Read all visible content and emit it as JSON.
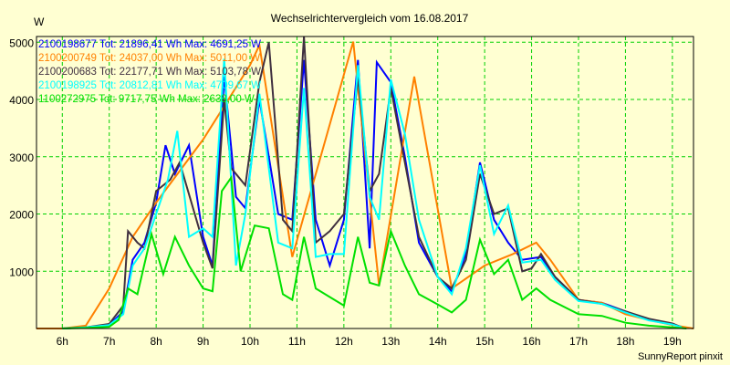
{
  "chart_data": {
    "type": "line",
    "title": "Wechselrichtervergleich vom 16.08.2017",
    "ylabel": "W",
    "xlabel": "",
    "footer": "SunnyReport pinxit",
    "xlim": [
      5.45,
      19.45
    ],
    "ylim": [
      0,
      5100
    ],
    "grid": true,
    "legend_placement": "top-left",
    "x_ticks": [
      6,
      7,
      8,
      9,
      10,
      11,
      12,
      13,
      14,
      15,
      16,
      17,
      18,
      19
    ],
    "x_tick_labels": [
      "6h",
      "7h",
      "8h",
      "9h",
      "10h",
      "11h",
      "12h",
      "13h",
      "14h",
      "15h",
      "16h",
      "17h",
      "18h",
      "19h"
    ],
    "y_ticks": [
      1000,
      2000,
      3000,
      4000,
      5000
    ],
    "y_tick_labels": [
      "1000",
      "2000",
      "3000",
      "4000",
      "5000"
    ],
    "series": [
      {
        "name": "2100198677",
        "legend": "2100198677 Tot: 21896,41 Wh Max: 4691,25 W",
        "color": "#0000ff",
        "x": [
          6.0,
          6.5,
          7.0,
          7.3,
          7.5,
          7.75,
          8.0,
          8.2,
          8.4,
          8.7,
          9.0,
          9.2,
          9.45,
          9.7,
          9.9,
          10.2,
          10.6,
          10.9,
          11.15,
          11.4,
          11.7,
          12.0,
          12.3,
          12.55,
          12.7,
          13.0,
          13.3,
          13.6,
          14.0,
          14.3,
          14.6,
          14.9,
          15.2,
          15.5,
          15.8,
          16.2,
          16.5,
          17.0,
          17.5,
          18.0,
          18.5,
          19.0,
          19.2
        ],
        "y": [
          0,
          20,
          60,
          300,
          1200,
          1500,
          2200,
          3200,
          2700,
          3200,
          1600,
          1100,
          4400,
          2300,
          2100,
          4000,
          2000,
          1900,
          4690,
          1900,
          1100,
          1900,
          4690,
          1400,
          4650,
          4300,
          3000,
          1500,
          900,
          650,
          1300,
          2900,
          1900,
          1500,
          1200,
          1250,
          900,
          500,
          450,
          300,
          150,
          80,
          20
        ]
      },
      {
        "name": "2100200749",
        "legend": "2100200749 Tot: 24037,00 Wh Max: 5011,00 W",
        "color": "#ff8000",
        "x": [
          5.45,
          6.0,
          6.5,
          7.0,
          7.5,
          8.0,
          9.0,
          10.0,
          10.2,
          10.9,
          12.2,
          12.75,
          13.5,
          14.3,
          15.0,
          15.6,
          16.1,
          16.4,
          17.0,
          17.5,
          18.0,
          18.5,
          19.0,
          19.45
        ],
        "y": [
          0,
          0,
          50,
          700,
          1600,
          2200,
          3300,
          4600,
          4950,
          1250,
          5011,
          750,
          4400,
          700,
          1100,
          1300,
          1500,
          1200,
          500,
          450,
          250,
          150,
          60,
          0
        ]
      },
      {
        "name": "2100200683",
        "legend": "2100200683 Tot: 22177,71 Wh Max: 5103,78 W",
        "color": "#403040",
        "x": [
          6.0,
          6.5,
          7.0,
          7.3,
          7.4,
          7.6,
          7.75,
          8.0,
          8.3,
          8.5,
          9.0,
          9.2,
          9.45,
          9.6,
          9.9,
          10.2,
          10.4,
          10.7,
          10.9,
          11.15,
          11.4,
          11.7,
          12.0,
          12.3,
          12.55,
          12.75,
          13.0,
          13.3,
          13.6,
          14.0,
          14.3,
          14.6,
          14.9,
          15.2,
          15.5,
          15.8,
          16.0,
          16.2,
          16.5,
          17.0,
          17.5,
          18.0,
          18.5,
          19.0,
          19.2
        ],
        "y": [
          0,
          20,
          80,
          400,
          1700,
          1500,
          1400,
          2400,
          2600,
          2900,
          1500,
          1050,
          4000,
          2800,
          2500,
          4300,
          5000,
          1900,
          1700,
          5103,
          1500,
          1700,
          2000,
          4400,
          2400,
          2700,
          4200,
          2900,
          1600,
          900,
          700,
          1200,
          2700,
          2000,
          2100,
          1000,
          1050,
          1300,
          900,
          500,
          430,
          300,
          170,
          90,
          20
        ]
      },
      {
        "name": "2100198925",
        "legend": "2100198925 Tot: 20812,81 Wh Max: 4709,67 W",
        "color": "#00ffff",
        "x": [
          6.0,
          6.5,
          7.0,
          7.3,
          7.5,
          7.75,
          8.0,
          8.25,
          8.45,
          8.7,
          9.0,
          9.2,
          9.45,
          9.7,
          9.9,
          10.2,
          10.6,
          10.9,
          11.15,
          11.4,
          11.7,
          12.0,
          12.3,
          12.55,
          12.75,
          13.0,
          13.3,
          13.6,
          14.0,
          14.3,
          14.6,
          14.9,
          15.2,
          15.5,
          15.8,
          16.2,
          16.5,
          17.0,
          17.5,
          18.0,
          18.5,
          19.0,
          19.2
        ],
        "y": [
          0,
          20,
          60,
          250,
          1100,
          1400,
          2000,
          2600,
          3450,
          1600,
          1750,
          1600,
          4709,
          1100,
          2000,
          4100,
          1500,
          1400,
          4200,
          1250,
          1300,
          1300,
          4600,
          2300,
          1900,
          4350,
          3400,
          1900,
          900,
          600,
          1400,
          2850,
          1650,
          2150,
          1150,
          1200,
          850,
          480,
          430,
          280,
          140,
          70,
          20
        ]
      },
      {
        "name": "1100272975",
        "legend": "1100272975 Tot: 9717,75 Wh Max: 2638,00 W",
        "color": "#00e000",
        "x": [
          6.0,
          6.5,
          7.0,
          7.2,
          7.4,
          7.6,
          7.9,
          8.15,
          8.4,
          8.7,
          9.0,
          9.2,
          9.4,
          9.6,
          9.8,
          10.1,
          10.4,
          10.7,
          10.9,
          11.15,
          11.4,
          11.7,
          12.0,
          12.3,
          12.55,
          12.75,
          13.0,
          13.3,
          13.6,
          14.0,
          14.3,
          14.6,
          14.9,
          15.2,
          15.5,
          15.8,
          16.1,
          16.4,
          17.0,
          17.5,
          18.0,
          18.5,
          19.0,
          19.3
        ],
        "y": [
          0,
          10,
          30,
          150,
          700,
          600,
          1650,
          950,
          1600,
          1100,
          700,
          650,
          2400,
          2638,
          1000,
          1800,
          1750,
          600,
          500,
          1600,
          700,
          550,
          400,
          1600,
          800,
          750,
          1700,
          1100,
          600,
          420,
          280,
          500,
          1550,
          950,
          1200,
          500,
          700,
          500,
          250,
          220,
          100,
          50,
          20,
          0
        ]
      }
    ]
  }
}
